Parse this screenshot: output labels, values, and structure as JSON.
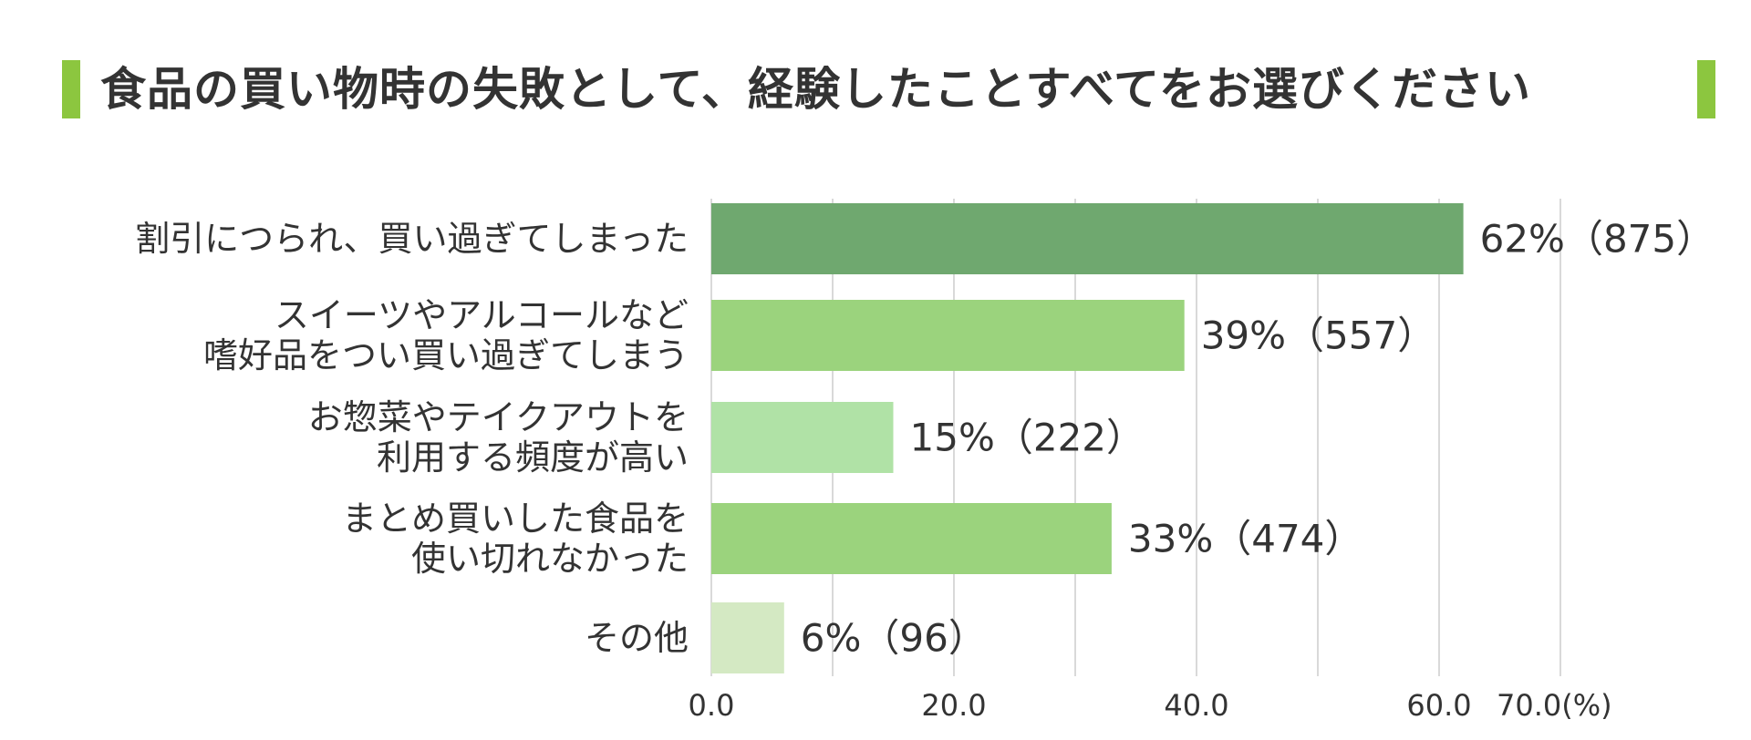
{
  "title": "食品の買い物時の失敗として、経験したことすべてをお選びください",
  "chart_data": {
    "type": "bar",
    "orientation": "horizontal",
    "title": "食品の買い物時の失敗として、経験したことすべてをお選びください",
    "categories": [
      [
        "割引につられ、買い過ぎてしまった"
      ],
      [
        "スイーツやアルコールなど",
        "嗜好品をつい買い過ぎてしまう"
      ],
      [
        "お惣菜やテイクアウトを",
        "利用する頻度が高い"
      ],
      [
        "まとめ買いした食品を",
        "使い切れなかった"
      ],
      [
        "その他"
      ]
    ],
    "values": [
      62,
      39,
      15,
      33,
      6
    ],
    "counts": [
      875,
      557,
      222,
      474,
      96
    ],
    "data_labels": [
      "62%（875）",
      "39%（557）",
      "15%（222）",
      "33%（474）",
      "6%（96）"
    ],
    "bar_colors": [
      "#6fa86f",
      "#9bd37d",
      "#b0e2a6",
      "#9bd37d",
      "#d4e9c3"
    ],
    "xlim": [
      0,
      70
    ],
    "xticks": [
      0,
      20,
      40,
      60,
      70
    ],
    "xtick_labels": [
      "0.0",
      "20.0",
      "40.0",
      "60.0",
      "70.0(%)"
    ],
    "xlabel": "",
    "ylabel": "",
    "grid": true,
    "gridline_values": [
      0,
      10,
      20,
      30,
      40,
      50,
      60,
      70
    ],
    "legend": "none"
  },
  "colors": {
    "title_accent": "#8cc63f",
    "gridline": "#d9d9d9",
    "text": "#333333"
  }
}
